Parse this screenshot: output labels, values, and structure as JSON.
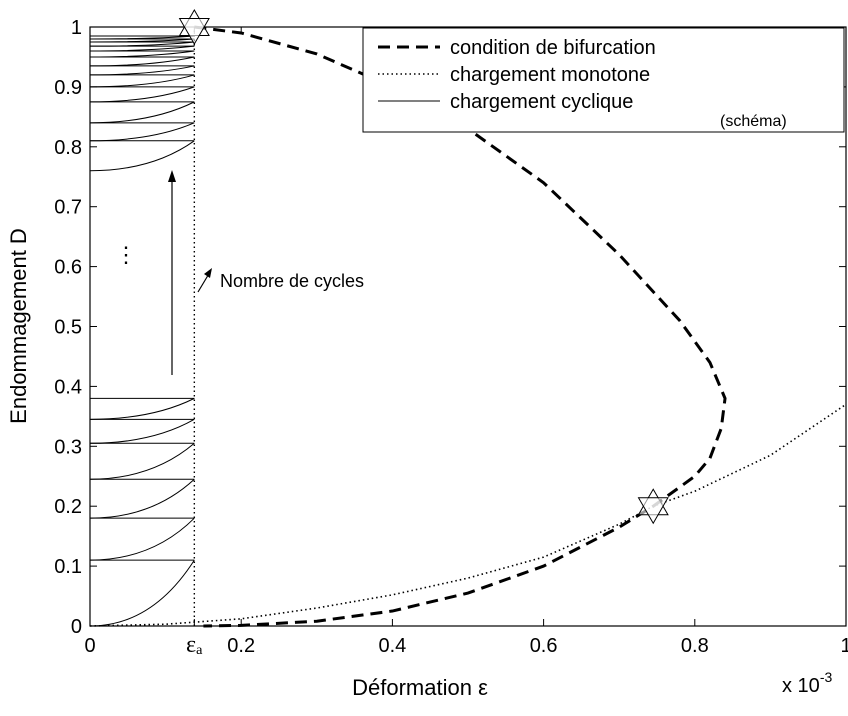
{
  "chart_data": {
    "type": "line",
    "xlabel": "Déformation ε",
    "ylabel": "Endommagement D",
    "x_exponent_base": "x 10",
    "x_exponent": "-3",
    "xlim": [
      0,
      1
    ],
    "ylim": [
      0,
      1
    ],
    "xticks": [
      0,
      {
        "value": 0.138,
        "label": "εₐ"
      },
      0.2,
      0.4,
      0.6,
      0.8,
      1
    ],
    "yticks": [
      0,
      0.1,
      0.2,
      0.3,
      0.4,
      0.5,
      0.6,
      0.7,
      0.8,
      0.9,
      1
    ],
    "series": [
      {
        "name": "condition de bifurcation",
        "color": "#000000",
        "style": "dashed",
        "x": [
          0.138,
          0.2,
          0.3,
          0.4,
          0.5,
          0.6,
          0.7,
          0.78,
          0.82,
          0.84,
          0.835,
          0.82,
          0.8,
          0.745,
          0.7,
          0.6,
          0.5,
          0.4,
          0.3,
          0.2,
          0.15
        ],
        "values": [
          1,
          0.99,
          0.955,
          0.9,
          0.83,
          0.74,
          0.62,
          0.51,
          0.44,
          0.38,
          0.33,
          0.28,
          0.25,
          0.2,
          0.165,
          0.1,
          0.055,
          0.025,
          0.008,
          0.001,
          0
        ]
      },
      {
        "name": "chargement monotone",
        "color": "#000000",
        "style": "dotted",
        "x": [
          0,
          0.1,
          0.2,
          0.3,
          0.4,
          0.5,
          0.6,
          0.7,
          0.745,
          0.8,
          0.9,
          1
        ],
        "values": [
          0,
          0.003,
          0.012,
          0.03,
          0.052,
          0.08,
          0.115,
          0.17,
          0.2,
          0.225,
          0.285,
          0.37
        ]
      },
      {
        "name": "chargement cyclique",
        "color": "#000000",
        "style": "solid"
      }
    ],
    "legend_note": "(schéma)",
    "cycles": [
      {
        "start": 0,
        "end": 0.11
      },
      {
        "start": 0.11,
        "end": 0.18
      },
      {
        "start": 0.18,
        "end": 0.245
      },
      {
        "start": 0.245,
        "end": 0.305
      },
      {
        "start": 0.305,
        "end": 0.345
      },
      {
        "start": 0.345,
        "end": 0.38
      },
      {
        "start": 0.76,
        "end": 0.81
      },
      {
        "start": 0.81,
        "end": 0.84
      },
      {
        "start": 0.84,
        "end": 0.875
      },
      {
        "start": 0.875,
        "end": 0.9
      },
      {
        "start": 0.9,
        "end": 0.92
      },
      {
        "start": 0.92,
        "end": 0.935
      },
      {
        "start": 0.935,
        "end": 0.95
      },
      {
        "start": 0.95,
        "end": 0.96
      },
      {
        "start": 0.96,
        "end": 0.968
      },
      {
        "start": 0.968,
        "end": 0.975
      },
      {
        "start": 0.975,
        "end": 0.98
      },
      {
        "start": 0.98,
        "end": 0.985
      }
    ],
    "markers": [
      {
        "x": 0.138,
        "y": 1
      },
      {
        "x": 0.745,
        "y": 0.2
      }
    ],
    "annotations": {
      "cycles_label": "Nombre de cycles",
      "ellipsis": "⋮"
    },
    "legend": "upper right"
  }
}
